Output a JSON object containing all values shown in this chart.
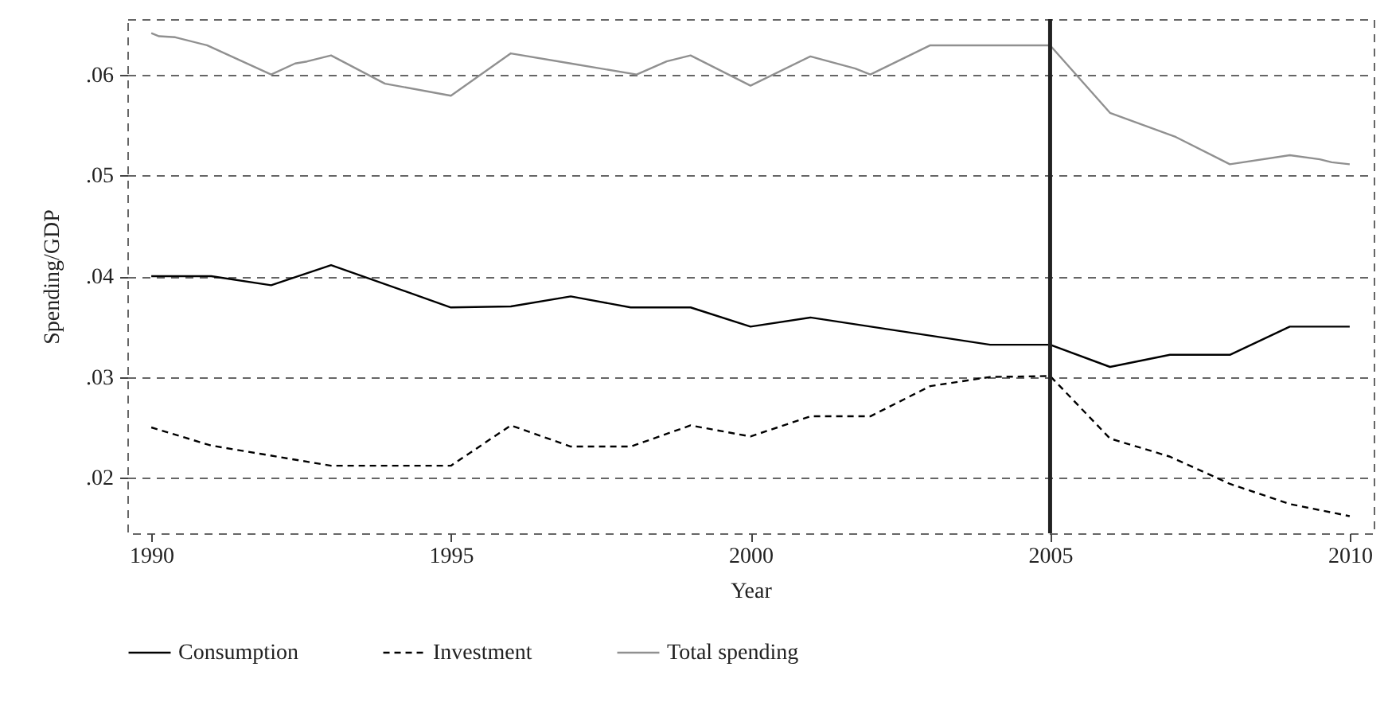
{
  "chart_data": {
    "type": "line",
    "xlabel": "Year",
    "ylabel": "Spending/GDP",
    "xlim": [
      1989.6,
      2010.4
    ],
    "ylim": [
      0.0145,
      0.0655
    ],
    "xticks": [
      1990,
      1995,
      2000,
      2005,
      2010
    ],
    "yticks": [
      {
        "value": 0.02,
        "label": ".02"
      },
      {
        "value": 0.03,
        "label": ".03"
      },
      {
        "value": 0.04,
        "label": ".04"
      },
      {
        "value": 0.05,
        "label": ".05"
      },
      {
        "value": 0.06,
        "label": ".06"
      }
    ],
    "grid": "y",
    "legend": "bottom",
    "ref_lines": [
      {
        "axis": "x",
        "value": 2005,
        "label": null,
        "color": "#222222",
        "line_style": "solid"
      }
    ],
    "series": [
      {
        "name": "Consumption",
        "color": "#000000",
        "line_style": "solid",
        "x": [
          1990,
          1991,
          1992,
          1993,
          1995,
          1996,
          1997,
          1998,
          1999,
          2000,
          2001,
          2004,
          2005,
          2006,
          2007,
          2008,
          2009,
          2010
        ],
        "values": [
          0.04,
          0.04,
          0.0391,
          0.0411,
          0.0369,
          0.037,
          0.038,
          0.0369,
          0.0369,
          0.035,
          0.0359,
          0.0332,
          0.0332,
          0.031,
          0.0322,
          0.0322,
          0.035,
          0.035
        ]
      },
      {
        "name": "Investment",
        "color": "#000000",
        "line_style": "dashed",
        "x": [
          1990,
          1991,
          1993,
          1995,
          1996,
          1997,
          1998,
          1999,
          2000,
          2001,
          2002,
          2003,
          2004,
          2005,
          2006,
          2007,
          2008,
          2009,
          2010
        ],
        "values": [
          0.025,
          0.0232,
          0.0212,
          0.0212,
          0.0252,
          0.0231,
          0.0231,
          0.0252,
          0.0241,
          0.0261,
          0.0261,
          0.0291,
          0.03,
          0.0301,
          0.0239,
          0.0221,
          0.0194,
          0.0174,
          0.0162
        ]
      },
      {
        "name": "Total spending",
        "color": "#909090",
        "line_style": "solid",
        "x": [
          1990,
          1990.13,
          1990.4,
          1990.93,
          1992,
          1992.4,
          1992.6,
          1993,
          1993.9,
          1995,
          1996,
          1997,
          1998.1,
          1998.6,
          1999,
          2000,
          2001,
          2001.75,
          2002,
          2003,
          2005,
          2006,
          2007.1,
          2008,
          2009,
          2009.5,
          2009.7,
          2010
        ],
        "values": [
          0.0641,
          0.0638,
          0.0637,
          0.0629,
          0.06,
          0.0611,
          0.0613,
          0.0619,
          0.0591,
          0.0579,
          0.0621,
          0.0611,
          0.06,
          0.0613,
          0.0619,
          0.0589,
          0.0618,
          0.0606,
          0.06,
          0.0629,
          0.0629,
          0.0562,
          0.0538,
          0.0511,
          0.052,
          0.0516,
          0.0513,
          0.0511
        ]
      }
    ]
  }
}
